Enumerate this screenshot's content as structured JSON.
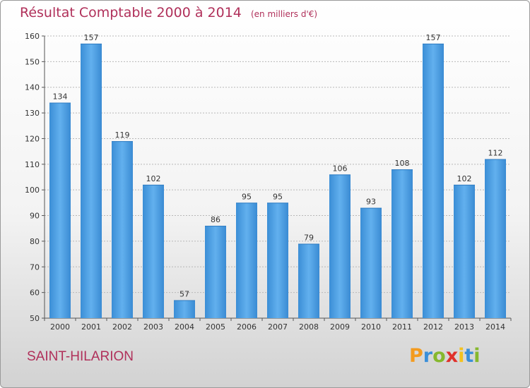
{
  "chart_data": {
    "type": "bar",
    "title": "Résultat Comptable 2000 à 2014",
    "subtitle": "(en milliers d'€)",
    "categories": [
      "2000",
      "2001",
      "2002",
      "2003",
      "2004",
      "2005",
      "2006",
      "2007",
      "2008",
      "2009",
      "2010",
      "2011",
      "2012",
      "2013",
      "2014"
    ],
    "values": [
      134,
      157,
      119,
      102,
      57,
      86,
      95,
      95,
      79,
      106,
      93,
      108,
      157,
      102,
      112
    ],
    "ylim": [
      50,
      160
    ],
    "yticks": [
      50,
      60,
      70,
      80,
      90,
      100,
      110,
      120,
      130,
      140,
      150,
      160
    ],
    "grid": true,
    "bar_color": "#4a9ee0"
  },
  "footer": {
    "city": "SAINT-HILARION",
    "brand": {
      "letters": [
        "P",
        "r",
        "o",
        "x",
        "i",
        "t",
        "i"
      ],
      "colors": [
        "#f39b1f",
        "#3a8fd9",
        "#86b82e",
        "#e0312b",
        "#f3c21f",
        "#3a8fd9",
        "#86b82e"
      ]
    }
  }
}
